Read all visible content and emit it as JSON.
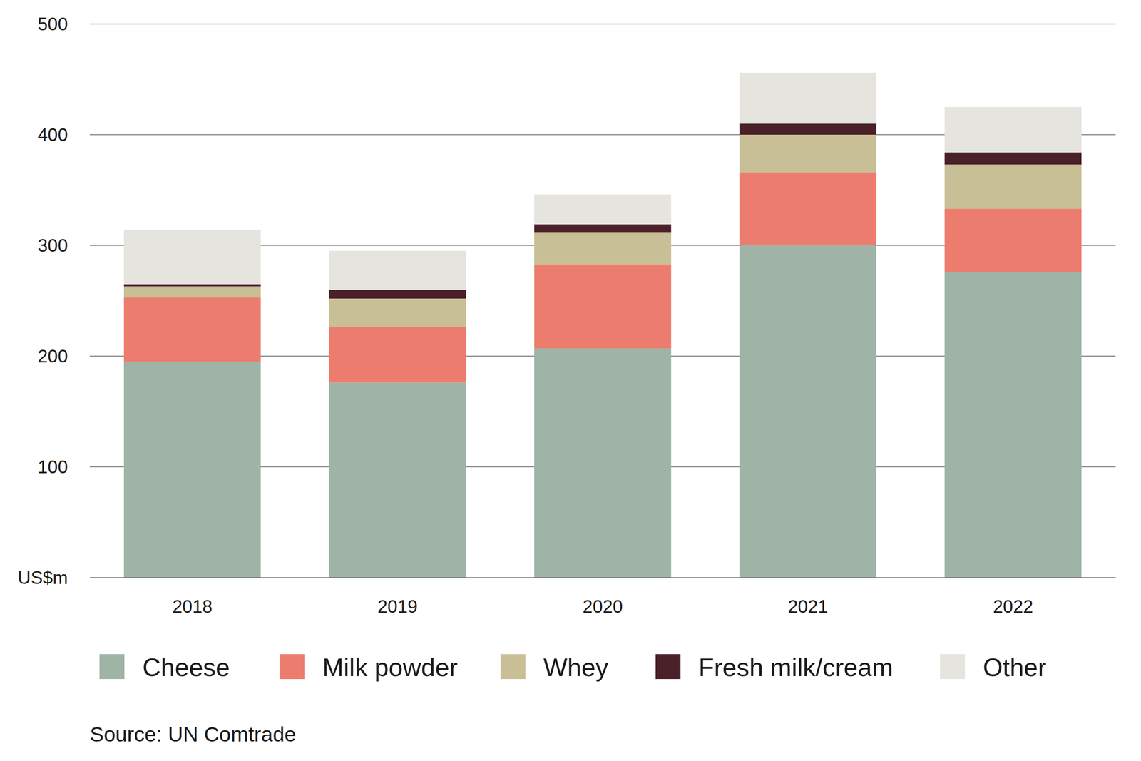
{
  "chart_data": {
    "type": "bar",
    "stacked": true,
    "grid": true,
    "y_label": "US$m",
    "source": "Source: UN Comtrade",
    "categories": [
      "2018",
      "2019",
      "2020",
      "2021",
      "2022"
    ],
    "ylim": [
      0,
      500
    ],
    "yticks": [
      100,
      200,
      300,
      400,
      500
    ],
    "legend": "bottom",
    "series": [
      {
        "name": "Cheese",
        "color": "#9fb3a7",
        "values": [
          195,
          176,
          207,
          300,
          276
        ]
      },
      {
        "name": "Milk powder",
        "color": "#ec7c6e",
        "values": [
          58,
          50,
          76,
          66,
          57
        ]
      },
      {
        "name": "Whey",
        "color": "#c8bf97",
        "values": [
          10,
          26,
          29,
          34,
          40
        ]
      },
      {
        "name": "Fresh milk/cream",
        "color": "#4a2029",
        "values": [
          2,
          8,
          7,
          10,
          11
        ]
      },
      {
        "name": "Other",
        "color": "#e5e4df",
        "values": [
          49,
          35,
          27,
          46,
          41
        ]
      }
    ]
  }
}
